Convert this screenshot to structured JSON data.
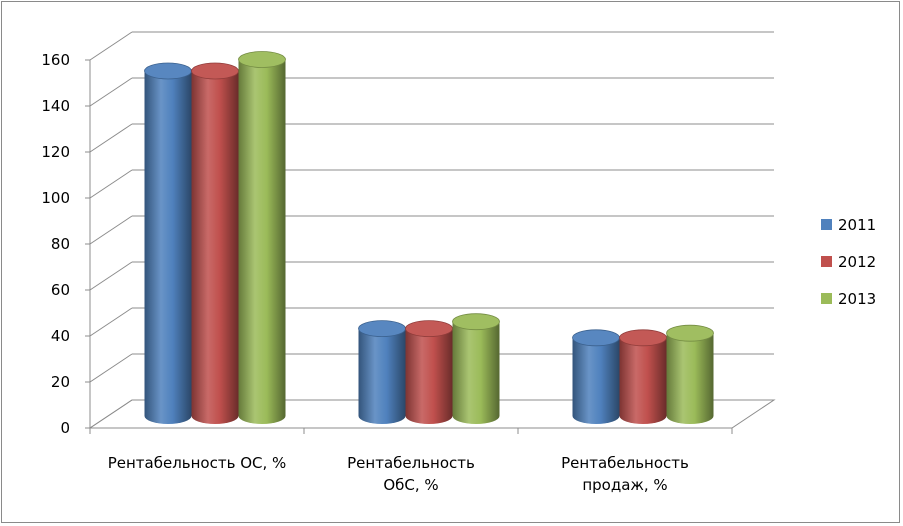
{
  "chart_data": {
    "type": "bar",
    "categories": [
      "Рентабельность ОС, %",
      "Рентабельность ОбС, %",
      "Рентабельность продаж, %"
    ],
    "category_lines": [
      [
        "Рентабельность ОС, %"
      ],
      [
        "Рентабельность",
        "ОбС, %"
      ],
      [
        "Рентабельность",
        "продаж, %"
      ]
    ],
    "series": [
      {
        "name": "2011",
        "values": [
          150,
          38,
          34
        ],
        "color": "#4f81bd"
      },
      {
        "name": "2012",
        "values": [
          150,
          38,
          34
        ],
        "color": "#c0504d"
      },
      {
        "name": "2013",
        "values": [
          155,
          41,
          36
        ],
        "color": "#9bbb59"
      }
    ],
    "ylim": [
      0,
      160
    ],
    "yticks": [
      "0",
      "20",
      "40",
      "60",
      "80",
      "100",
      "120",
      "140",
      "160"
    ],
    "grid": true,
    "legend_position": "right",
    "style": "3d-cylinder"
  }
}
